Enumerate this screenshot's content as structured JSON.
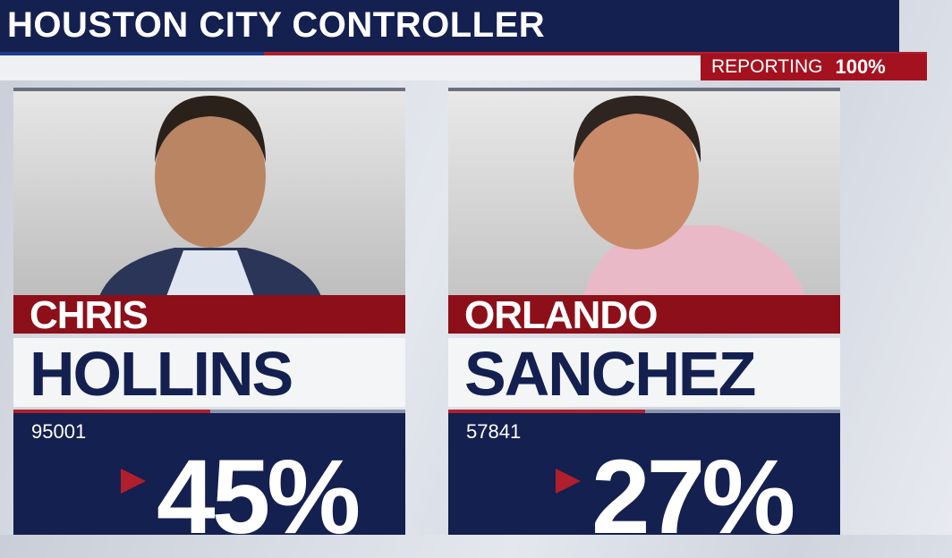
{
  "header": {
    "title": "HOUSTON CITY CONTROLLER",
    "reporting_label": "REPORTING",
    "reporting_value": "100%"
  },
  "candidates": [
    {
      "first_name": "CHRIS",
      "last_name": "HOLLINS",
      "votes": "95001",
      "percent": "45%"
    },
    {
      "first_name": "ORLANDO",
      "last_name": "SANCHEZ",
      "votes": "57841",
      "percent": "27%"
    }
  ]
}
